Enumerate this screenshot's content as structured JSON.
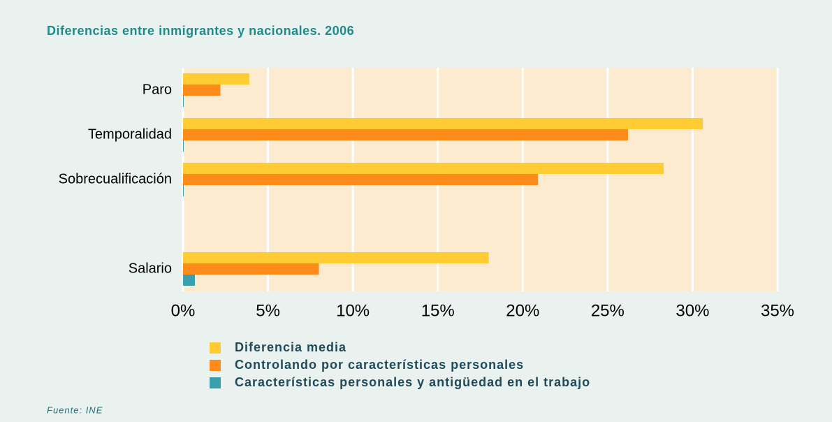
{
  "chart_data": {
    "type": "hbar",
    "title": "Diferencias entre inmigrantes y nacionales. 2006",
    "source": "Fuente: INE",
    "categories": [
      "Paro",
      "Temporalidad",
      "Sobrecualificación",
      null,
      "Salario"
    ],
    "series": [
      {
        "name": "Diferencia media",
        "color": "#ffcc33",
        "values": [
          3.9,
          30.6,
          28.3,
          null,
          18.0
        ]
      },
      {
        "name": "Controlando por características personales",
        "color": "#ff8c1a",
        "values": [
          2.2,
          26.2,
          20.9,
          null,
          8.0
        ]
      },
      {
        "name": "Características personales y antigüedad en el trabajo",
        "color": "#3aa0ad",
        "values": [
          0,
          0,
          0,
          null,
          0.7
        ]
      }
    ],
    "xlim": [
      0,
      35
    ],
    "xticks": [
      {
        "value": 0,
        "label": "0%"
      },
      {
        "value": 5,
        "label": "5%"
      },
      {
        "value": 10,
        "label": "10%"
      },
      {
        "value": 15,
        "label": "15%"
      },
      {
        "value": 20,
        "label": "20%"
      },
      {
        "value": 25,
        "label": "25%"
      },
      {
        "value": 30,
        "label": "30%"
      },
      {
        "value": 35,
        "label": "35%"
      }
    ],
    "grid": true
  }
}
